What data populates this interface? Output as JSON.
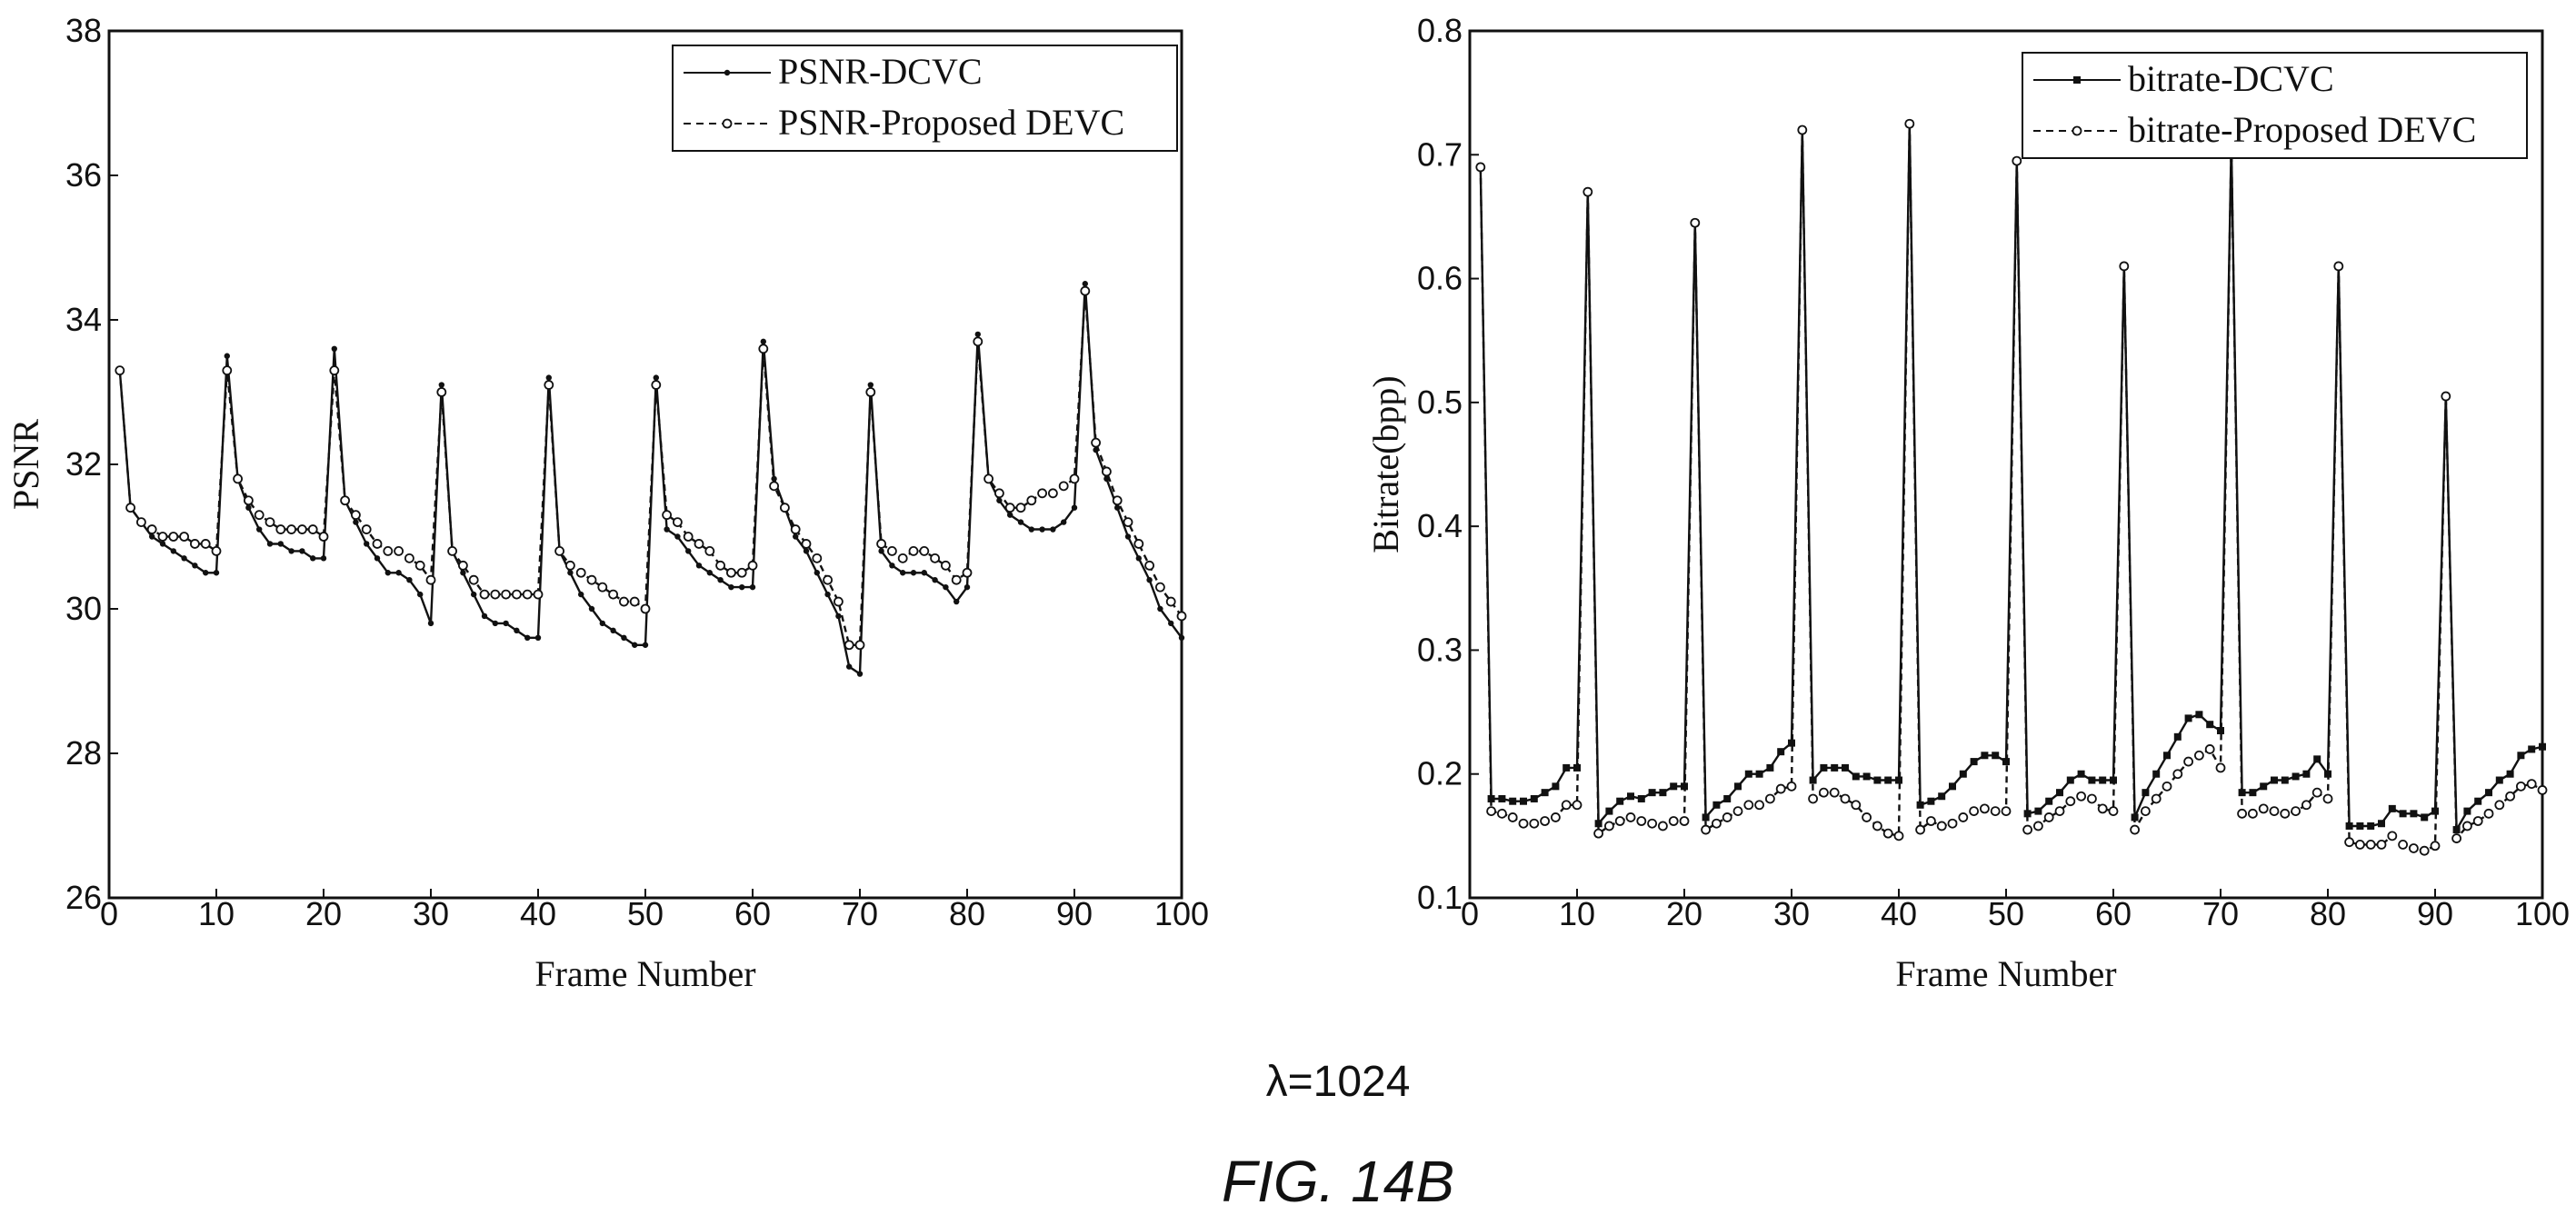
{
  "caption": "λ=1024",
  "figure_label": "FIG. 14B",
  "chart_data": [
    {
      "type": "line",
      "xlabel": "Frame Number",
      "ylabel": "PSNR",
      "xlim": [
        0,
        100
      ],
      "ylim": [
        26,
        38
      ],
      "xticks": [
        "0",
        "10",
        "20",
        "30",
        "40",
        "50",
        "60",
        "70",
        "80",
        "90",
        "100"
      ],
      "yticks": [
        "26",
        "28",
        "30",
        "32",
        "34",
        "36",
        "38"
      ],
      "grid": false,
      "legend_position": "top-right",
      "x": [
        1,
        2,
        3,
        4,
        5,
        6,
        7,
        8,
        9,
        10,
        11,
        12,
        13,
        14,
        15,
        16,
        17,
        18,
        19,
        20,
        21,
        22,
        23,
        24,
        25,
        26,
        27,
        28,
        29,
        30,
        31,
        32,
        33,
        34,
        35,
        36,
        37,
        38,
        39,
        40,
        41,
        42,
        43,
        44,
        45,
        46,
        47,
        48,
        49,
        50,
        51,
        52,
        53,
        54,
        55,
        56,
        57,
        58,
        59,
        60,
        61,
        62,
        63,
        64,
        65,
        66,
        67,
        68,
        69,
        70,
        71,
        72,
        73,
        74,
        75,
        76,
        77,
        78,
        79,
        80,
        81,
        82,
        83,
        84,
        85,
        86,
        87,
        88,
        89,
        90,
        91,
        92,
        93,
        94,
        95,
        96,
        97,
        98,
        99,
        100
      ],
      "series": [
        {
          "name": "PSNR-DCVC",
          "style": "solid-dots",
          "values": [
            33.3,
            31.4,
            31.2,
            31.0,
            30.9,
            30.8,
            30.7,
            30.6,
            30.5,
            30.5,
            33.5,
            31.8,
            31.4,
            31.1,
            30.9,
            30.9,
            30.8,
            30.8,
            30.7,
            30.7,
            33.6,
            31.5,
            31.2,
            30.9,
            30.7,
            30.5,
            30.5,
            30.4,
            30.2,
            29.8,
            33.1,
            30.8,
            30.5,
            30.2,
            29.9,
            29.8,
            29.8,
            29.7,
            29.6,
            29.6,
            33.2,
            30.8,
            30.5,
            30.2,
            30.0,
            29.8,
            29.7,
            29.6,
            29.5,
            29.5,
            33.2,
            31.1,
            31.0,
            30.8,
            30.6,
            30.5,
            30.4,
            30.3,
            30.3,
            30.3,
            33.7,
            31.8,
            31.4,
            31.0,
            30.8,
            30.5,
            30.2,
            29.9,
            29.2,
            29.1,
            33.1,
            30.8,
            30.6,
            30.5,
            30.5,
            30.5,
            30.4,
            30.3,
            30.1,
            30.3,
            33.8,
            31.8,
            31.5,
            31.3,
            31.2,
            31.1,
            31.1,
            31.1,
            31.2,
            31.4,
            34.5,
            32.2,
            31.8,
            31.4,
            31.0,
            30.7,
            30.4,
            30.0,
            29.8,
            29.6
          ]
        },
        {
          "name": "PSNR-Proposed DEVC",
          "style": "dashed-circles",
          "values": [
            33.3,
            31.4,
            31.2,
            31.1,
            31.0,
            31.0,
            31.0,
            30.9,
            30.9,
            30.8,
            33.3,
            31.8,
            31.5,
            31.3,
            31.2,
            31.1,
            31.1,
            31.1,
            31.1,
            31.0,
            33.3,
            31.5,
            31.3,
            31.1,
            30.9,
            30.8,
            30.8,
            30.7,
            30.6,
            30.4,
            33.0,
            30.8,
            30.6,
            30.4,
            30.2,
            30.2,
            30.2,
            30.2,
            30.2,
            30.2,
            33.1,
            30.8,
            30.6,
            30.5,
            30.4,
            30.3,
            30.2,
            30.1,
            30.1,
            30.0,
            33.1,
            31.3,
            31.2,
            31.0,
            30.9,
            30.8,
            30.6,
            30.5,
            30.5,
            30.6,
            33.6,
            31.7,
            31.4,
            31.1,
            30.9,
            30.7,
            30.4,
            30.1,
            29.5,
            29.5,
            33.0,
            30.9,
            30.8,
            30.7,
            30.8,
            30.8,
            30.7,
            30.6,
            30.4,
            30.5,
            33.7,
            31.8,
            31.6,
            31.4,
            31.4,
            31.5,
            31.6,
            31.6,
            31.7,
            31.8,
            34.4,
            32.3,
            31.9,
            31.5,
            31.2,
            30.9,
            30.6,
            30.3,
            30.1,
            29.9
          ]
        }
      ]
    },
    {
      "type": "line",
      "xlabel": "Frame Number",
      "ylabel": "Bitrate(bpp)",
      "xlim": [
        0,
        100
      ],
      "ylim": [
        0.1,
        0.8
      ],
      "xticks": [
        "0",
        "10",
        "20",
        "30",
        "40",
        "50",
        "60",
        "70",
        "80",
        "90",
        "100"
      ],
      "yticks": [
        "0.1",
        "0.2",
        "0.3",
        "0.4",
        "0.5",
        "0.6",
        "0.7",
        "0.8"
      ],
      "grid": false,
      "legend_position": "top-right",
      "x": [
        1,
        2,
        3,
        4,
        5,
        6,
        7,
        8,
        9,
        10,
        11,
        12,
        13,
        14,
        15,
        16,
        17,
        18,
        19,
        20,
        21,
        22,
        23,
        24,
        25,
        26,
        27,
        28,
        29,
        30,
        31,
        32,
        33,
        34,
        35,
        36,
        37,
        38,
        39,
        40,
        41,
        42,
        43,
        44,
        45,
        46,
        47,
        48,
        49,
        50,
        51,
        52,
        53,
        54,
        55,
        56,
        57,
        58,
        59,
        60,
        61,
        62,
        63,
        64,
        65,
        66,
        67,
        68,
        69,
        70,
        71,
        72,
        73,
        74,
        75,
        76,
        77,
        78,
        79,
        80,
        81,
        82,
        83,
        84,
        85,
        86,
        87,
        88,
        89,
        90,
        91,
        92,
        93,
        94,
        95,
        96,
        97,
        98,
        99,
        100
      ],
      "series": [
        {
          "name": "bitrate-DCVC",
          "style": "solid-squares",
          "values": [
            0.69,
            0.18,
            0.18,
            0.178,
            0.178,
            0.18,
            0.185,
            0.19,
            0.205,
            0.205,
            0.67,
            0.16,
            0.17,
            0.178,
            0.182,
            0.18,
            0.185,
            0.185,
            0.19,
            0.19,
            0.645,
            0.165,
            0.175,
            0.18,
            0.19,
            0.2,
            0.2,
            0.205,
            0.218,
            0.225,
            0.72,
            0.195,
            0.205,
            0.205,
            0.205,
            0.198,
            0.198,
            0.195,
            0.195,
            0.195,
            0.725,
            0.175,
            0.178,
            0.182,
            0.19,
            0.2,
            0.21,
            0.215,
            0.215,
            0.21,
            0.695,
            0.168,
            0.17,
            0.178,
            0.185,
            0.195,
            0.2,
            0.195,
            0.195,
            0.195,
            0.61,
            0.165,
            0.185,
            0.2,
            0.215,
            0.23,
            0.245,
            0.248,
            0.24,
            0.235,
            0.71,
            0.185,
            0.185,
            0.19,
            0.195,
            0.195,
            0.198,
            0.2,
            0.212,
            0.2,
            0.61,
            0.158,
            0.158,
            0.158,
            0.16,
            0.172,
            0.168,
            0.168,
            0.165,
            0.17,
            0.505,
            0.155,
            0.17,
            0.178,
            0.185,
            0.195,
            0.2,
            0.215,
            0.22,
            0.222
          ]
        },
        {
          "name": "bitrate-Proposed DEVC",
          "style": "dashed-circles",
          "values": [
            0.69,
            0.17,
            0.168,
            0.165,
            0.16,
            0.16,
            0.162,
            0.165,
            0.175,
            0.175,
            0.67,
            0.152,
            0.158,
            0.162,
            0.165,
            0.162,
            0.16,
            0.158,
            0.162,
            0.162,
            0.645,
            0.155,
            0.16,
            0.165,
            0.17,
            0.175,
            0.175,
            0.18,
            0.188,
            0.19,
            0.72,
            0.18,
            0.185,
            0.185,
            0.18,
            0.175,
            0.165,
            0.158,
            0.152,
            0.15,
            0.725,
            0.155,
            0.162,
            0.158,
            0.16,
            0.165,
            0.17,
            0.172,
            0.17,
            0.17,
            0.695,
            0.155,
            0.158,
            0.165,
            0.17,
            0.178,
            0.182,
            0.18,
            0.172,
            0.17,
            0.61,
            0.155,
            0.17,
            0.18,
            0.19,
            0.2,
            0.21,
            0.215,
            0.22,
            0.205,
            0.71,
            0.168,
            0.168,
            0.172,
            0.17,
            0.168,
            0.17,
            0.175,
            0.185,
            0.18,
            0.61,
            0.145,
            0.143,
            0.143,
            0.143,
            0.15,
            0.143,
            0.14,
            0.138,
            0.142,
            0.505,
            0.148,
            0.158,
            0.162,
            0.168,
            0.175,
            0.182,
            0.19,
            0.192,
            0.187
          ]
        }
      ]
    }
  ]
}
